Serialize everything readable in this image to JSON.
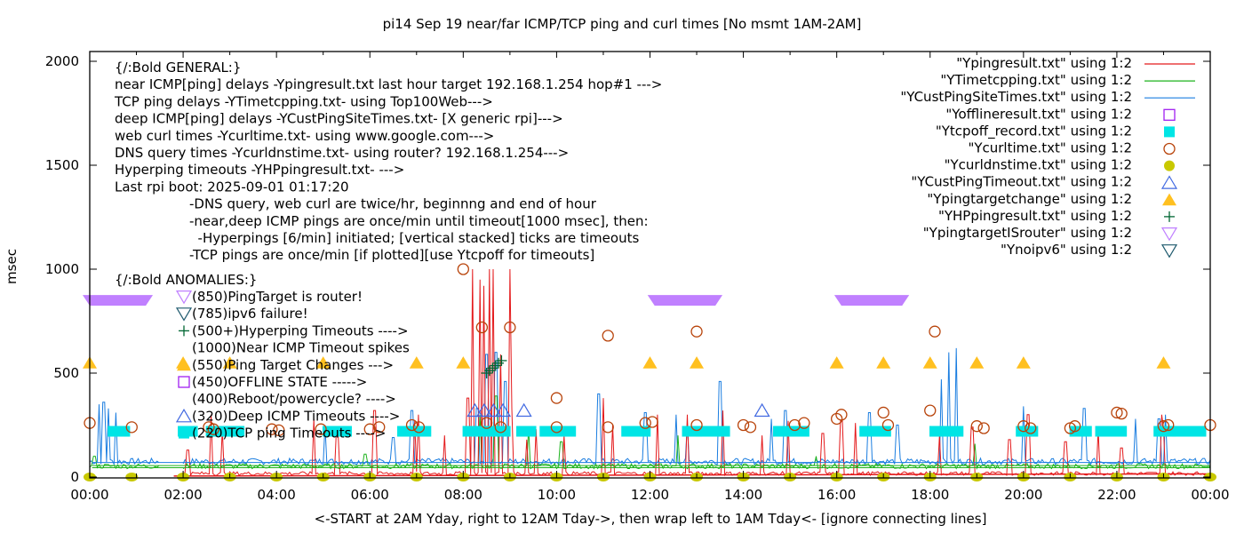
{
  "chart_data": {
    "type": "line",
    "title": "pi14 Sep 19  near/far ICMP/TCP ping and curl times [No msmt 1AM-2AM]",
    "xlabel": "<-START at 2AM Yday, right to 12AM Tday->, then wrap left to 1AM Tday<- [ignore connecting lines]",
    "ylabel": "msec",
    "xlim": [
      0,
      24
    ],
    "ylim": [
      0,
      2000
    ],
    "x_ticks": [
      "00:00",
      "02:00",
      "04:00",
      "06:00",
      "08:00",
      "10:00",
      "12:00",
      "14:00",
      "16:00",
      "18:00",
      "20:00",
      "22:00",
      "00:00"
    ],
    "y_ticks": [
      0,
      500,
      1000,
      1500,
      2000
    ],
    "grid": false,
    "legend_position": "top-right",
    "legend": [
      {
        "label": "\"Ypingresult.txt\" using 1:2",
        "kind": "line",
        "color": "#e41a1c"
      },
      {
        "label": "\"YTimetcpping.txt\" using 1:2",
        "kind": "line",
        "color": "#1db31d"
      },
      {
        "label": "\"YCustPingSiteTimes.txt\" using 1:2",
        "kind": "line",
        "color": "#1a7de0"
      },
      {
        "label": "\"Yofflineresult.txt\" using 1:2",
        "kind": "open-square",
        "color": "#a020f0"
      },
      {
        "label": "\"Ytcpoff_record.txt\" using 1:2",
        "kind": "filled-square",
        "color": "#00e5e5"
      },
      {
        "label": "\"Ycurltime.txt\" using 1:2",
        "kind": "open-circle",
        "color": "#b8430a"
      },
      {
        "label": "\"Ycurldnstime.txt\" using 1:2",
        "kind": "filled-circle",
        "color": "#c8c800"
      },
      {
        "label": "\"YCustPingTimeout.txt\" using 1:2",
        "kind": "open-triangle-up",
        "color": "#4169e1"
      },
      {
        "label": "\"Ypingtargetchange\" using 1:2",
        "kind": "filled-triangle-up",
        "color": "#ffc020"
      },
      {
        "label": "\"YHPpingresult.txt\" using 1:2",
        "kind": "plus",
        "color": "#006633"
      },
      {
        "label": "\"YpingtargetISrouter\" using 1:2",
        "kind": "open-triangle-down",
        "color": "#c080ff"
      },
      {
        "label": "\"Ynoipv6\" using 1:2",
        "kind": "open-triangle-down",
        "color": "#1f5a6e"
      }
    ],
    "annotations": {
      "general_header": "{/:Bold GENERAL:}",
      "general_lines": [
        "near ICMP[ping] delays -Ypingresult.txt last hour target 192.168.1.254 hop#1 --->",
        "TCP ping delays -YTimetcpping.txt- using Top100Web--->",
        "deep ICMP[ping] delays -YCustPingSiteTimes.txt- [X generic rpi]--->",
        "web curl times -Ycurltime.txt- using www.google.com--->",
        "DNS query times -Ycurldnstime.txt- using router? 192.168.1.254--->",
        "Hyperping timeouts -YHPpingresult.txt- --->",
        "Last rpi boot: 2025-09-01 01:17:20"
      ],
      "notes": [
        "-DNS query, web curl are twice/hr, beginnng and end of hour",
        "-near,deep ICMP pings are once/min until timeout[1000 msec], then:",
        "  -Hyperpings [6/min] initiated; [vertical stacked] ticks are timeouts",
        "-TCP pings are once/min [if plotted][use Ytcpoff for timeouts]"
      ],
      "anomalies_header": "{/:Bold ANOMALIES:}",
      "anomalies": [
        {
          "text": "(850)PingTarget is router!",
          "marker": "open-triangle-down",
          "color": "#c080ff"
        },
        {
          "text": "(785)ipv6 failure!",
          "marker": "open-triangle-down",
          "color": "#1f5a6e"
        },
        {
          "text": "(500+)Hyperping Timeouts ---->",
          "marker": "plus",
          "color": "#006633"
        },
        {
          "text": "(1000)Near ICMP Timeout spikes",
          "marker": "none",
          "color": ""
        },
        {
          "text": "(550)Ping Target Changes --->",
          "marker": "filled-triangle-up",
          "color": "#ffc020"
        },
        {
          "text": "(450)OFFLINE STATE ----->",
          "marker": "open-square",
          "color": "#a020f0"
        },
        {
          "text": "(400)Reboot/powercycle? ---->",
          "marker": "none",
          "color": ""
        },
        {
          "text": "(320)Deep ICMP Timeouts ---->",
          "marker": "open-triangle-up",
          "color": "#4169e1"
        },
        {
          "text": "(220)TCP ping Timeouts ---->",
          "marker": "filled-square",
          "color": "#00e5e5"
        }
      ]
    },
    "series": {
      "ping_target_is_router": {
        "y": 850,
        "ranges": [
          [
            0.0,
            1.2
          ],
          [
            12.1,
            13.4
          ],
          [
            16.1,
            17.4
          ]
        ]
      },
      "ping_target_change": {
        "y": 550,
        "x": [
          0.0,
          2.0,
          3.0,
          5.0,
          7.0,
          8.0,
          12.0,
          13.0,
          16.0,
          17.0,
          18.0,
          19.0,
          20.0,
          23.0
        ]
      },
      "curl_time": {
        "points": [
          [
            0.0,
            260
          ],
          [
            0.9,
            240
          ],
          [
            2.55,
            240
          ],
          [
            2.65,
            230
          ],
          [
            3.9,
            230
          ],
          [
            4.05,
            225
          ],
          [
            4.95,
            230
          ],
          [
            6.0,
            230
          ],
          [
            6.2,
            240
          ],
          [
            6.9,
            250
          ],
          [
            7.05,
            240
          ],
          [
            8.0,
            1000
          ],
          [
            8.4,
            720
          ],
          [
            8.5,
            260
          ],
          [
            8.8,
            240
          ],
          [
            9.0,
            720
          ],
          [
            10.0,
            380
          ],
          [
            10.0,
            240
          ],
          [
            11.1,
            680
          ],
          [
            11.1,
            240
          ],
          [
            11.9,
            260
          ],
          [
            12.05,
            265
          ],
          [
            13.0,
            700
          ],
          [
            13.0,
            250
          ],
          [
            14.0,
            250
          ],
          [
            14.15,
            240
          ],
          [
            15.1,
            250
          ],
          [
            15.3,
            260
          ],
          [
            16.0,
            280
          ],
          [
            16.1,
            300
          ],
          [
            17.0,
            310
          ],
          [
            17.1,
            250
          ],
          [
            18.0,
            320
          ],
          [
            18.1,
            700
          ],
          [
            19.0,
            245
          ],
          [
            19.15,
            235
          ],
          [
            20.0,
            245
          ],
          [
            20.15,
            235
          ],
          [
            21.0,
            235
          ],
          [
            21.1,
            245
          ],
          [
            22.0,
            310
          ],
          [
            22.1,
            305
          ],
          [
            23.0,
            245
          ],
          [
            23.1,
            250
          ],
          [
            24.0,
            250
          ]
        ]
      },
      "dns_time": {
        "y": 0,
        "x": [
          0.0,
          0.9,
          2.0,
          3.0,
          4.0,
          5.0,
          6.0,
          7.0,
          8.0,
          9.0,
          10.0,
          11.0,
          12.0,
          13.0,
          14.0,
          15.0,
          16.0,
          17.0,
          18.0,
          19.0,
          20.0,
          21.0,
          22.0,
          23.0,
          24.0
        ]
      },
      "tcp_timeouts": {
        "y": 220,
        "ranges": [
          [
            0.5,
            0.75
          ],
          [
            2.0,
            2.2
          ],
          [
            2.6,
            3.2
          ],
          [
            5.1,
            5.5
          ],
          [
            6.7,
            7.2
          ],
          [
            8.1,
            8.9
          ],
          [
            9.25,
            9.45
          ],
          [
            9.75,
            10.3
          ],
          [
            11.5,
            11.9
          ],
          [
            12.8,
            13.0
          ],
          [
            13.1,
            13.6
          ],
          [
            14.75,
            15.3
          ],
          [
            16.6,
            17.05
          ],
          [
            18.1,
            18.6
          ],
          [
            19.95,
            20.2
          ],
          [
            21.1,
            21.35
          ],
          [
            21.65,
            22.1
          ],
          [
            22.9,
            23.15
          ],
          [
            23.3,
            23.8
          ]
        ]
      },
      "deep_icmp_timeouts": {
        "y": 320,
        "x": [
          8.25,
          8.45,
          8.65,
          8.85,
          9.3,
          14.4
        ]
      },
      "hyperping_timeouts": {
        "x_range": [
          8.1,
          8.9
        ],
        "y_range": [
          500,
          560
        ]
      },
      "offline_state": {
        "points": []
      },
      "ipv6_failure": {
        "points": []
      }
    },
    "near_icmp_spikes": [
      [
        2.1,
        130
      ],
      [
        2.6,
        300
      ],
      [
        2.85,
        230
      ],
      [
        4.8,
        280
      ],
      [
        5.3,
        210
      ],
      [
        6.1,
        320
      ],
      [
        6.95,
        270
      ],
      [
        7.05,
        300
      ],
      [
        7.6,
        200
      ],
      [
        8.1,
        380
      ],
      [
        8.2,
        1000
      ],
      [
        8.35,
        950
      ],
      [
        8.45,
        920
      ],
      [
        8.55,
        1000
      ],
      [
        8.65,
        1000
      ],
      [
        8.8,
        590
      ],
      [
        9.0,
        1000
      ],
      [
        9.05,
        330
      ],
      [
        9.35,
        180
      ],
      [
        9.55,
        230
      ],
      [
        10.15,
        200
      ],
      [
        11.0,
        380
      ],
      [
        11.2,
        250
      ],
      [
        12.15,
        300
      ],
      [
        12.8,
        300
      ],
      [
        13.55,
        320
      ],
      [
        14.4,
        200
      ],
      [
        14.95,
        270
      ],
      [
        15.7,
        210
      ],
      [
        16.1,
        270
      ],
      [
        16.4,
        260
      ],
      [
        18.2,
        200
      ],
      [
        18.9,
        240
      ],
      [
        19.7,
        180
      ],
      [
        20.1,
        300
      ],
      [
        20.9,
        170
      ],
      [
        21.6,
        230
      ],
      [
        22.1,
        140
      ],
      [
        22.95,
        300
      ],
      [
        23.0,
        230
      ]
    ],
    "deep_icmp_spikes": [
      [
        0.2,
        350
      ],
      [
        0.3,
        360
      ],
      [
        0.4,
        330
      ],
      [
        0.55,
        310
      ],
      [
        5.05,
        250
      ],
      [
        6.5,
        190
      ],
      [
        6.9,
        320
      ],
      [
        8.3,
        330
      ],
      [
        8.5,
        590
      ],
      [
        8.7,
        600
      ],
      [
        8.9,
        460
      ],
      [
        10.9,
        400
      ],
      [
        11.9,
        310
      ],
      [
        12.55,
        300
      ],
      [
        12.8,
        260
      ],
      [
        13.5,
        460
      ],
      [
        14.6,
        280
      ],
      [
        14.9,
        320
      ],
      [
        16.7,
        310
      ],
      [
        17.3,
        250
      ],
      [
        18.25,
        470
      ],
      [
        18.4,
        600
      ],
      [
        18.55,
        620
      ],
      [
        20.0,
        340
      ],
      [
        21.3,
        330
      ],
      [
        22.4,
        280
      ],
      [
        22.9,
        280
      ],
      [
        23.05,
        300
      ]
    ],
    "tcp_spikes": [
      [
        0.1,
        100
      ],
      [
        5.9,
        110
      ],
      [
        8.35,
        300
      ],
      [
        8.7,
        390
      ],
      [
        9.4,
        240
      ],
      [
        10.1,
        170
      ],
      [
        12.6,
        200
      ],
      [
        15.55,
        100
      ],
      [
        18.95,
        160
      ]
    ]
  }
}
